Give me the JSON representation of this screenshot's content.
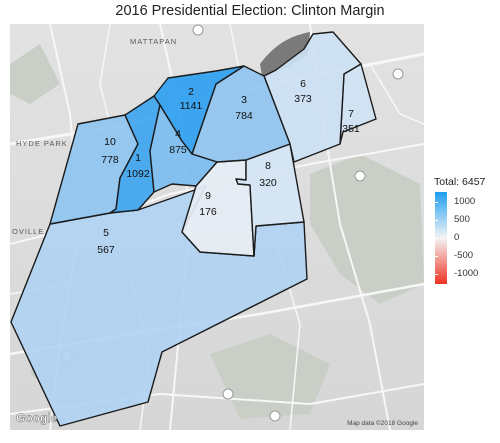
{
  "title": "2016 Presidential Election: Clinton Margin",
  "legend": {
    "title": "Total: 6457",
    "ticks": [
      "1000",
      "500",
      "0",
      "-500",
      "-1000"
    ],
    "colors": {
      "high": "#1e9ff2",
      "mid": "#f4f4f4",
      "low": "#ee3322"
    }
  },
  "basemap": {
    "place_labels": [
      "MATTAPAN",
      "HYDE PARK",
      "OVILLE"
    ],
    "logo": "Google",
    "attribution": "Map data ©2018 Google"
  },
  "precincts": [
    {
      "id": "1",
      "label": "1",
      "value": "1092",
      "color": "#3ea5ee"
    },
    {
      "id": "2",
      "label": "2",
      "value": "1141",
      "color": "#2fa0f0"
    },
    {
      "id": "3",
      "label": "3",
      "value": "784",
      "color": "#90c4ef"
    },
    {
      "id": "4",
      "label": "4",
      "value": "875",
      "color": "#7cbdf0"
    },
    {
      "id": "5",
      "label": "5",
      "value": "567",
      "color": "#b0d3f2"
    },
    {
      "id": "6",
      "label": "6",
      "value": "373",
      "color": "#cce1f4"
    },
    {
      "id": "7",
      "label": "7",
      "value": "351",
      "color": "#cfe2f4"
    },
    {
      "id": "8",
      "label": "8",
      "value": "320",
      "color": "#d5e5f4"
    },
    {
      "id": "9",
      "label": "9",
      "value": "176",
      "color": "#e6edf4"
    },
    {
      "id": "10",
      "label": "10",
      "value": "778",
      "color": "#8fc4ef"
    }
  ]
}
